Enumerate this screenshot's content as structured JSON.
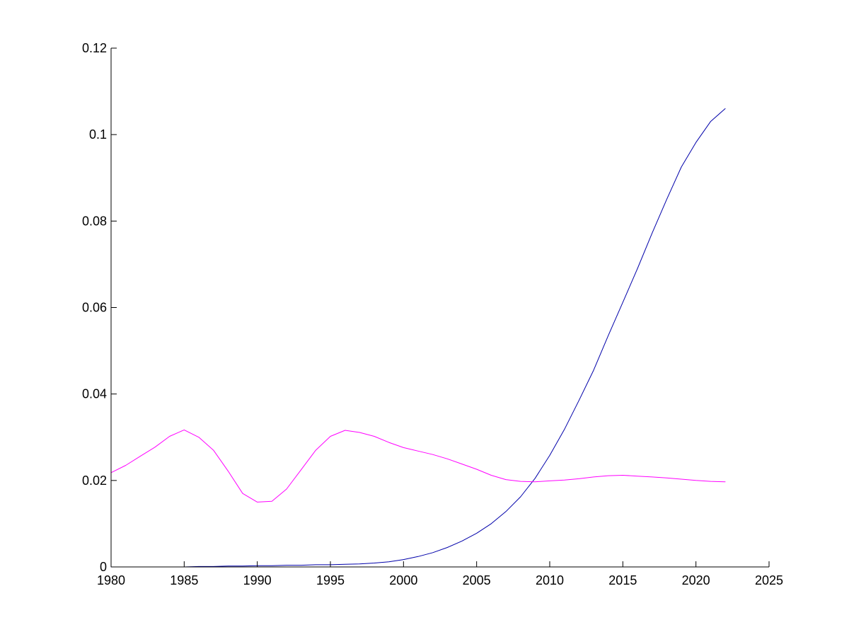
{
  "chart_data": {
    "type": "line",
    "title": "",
    "xlabel": "",
    "ylabel": "",
    "xlim": [
      1980,
      2025
    ],
    "ylim": [
      0,
      0.12
    ],
    "grid": false,
    "x_ticks": [
      1980,
      1985,
      1990,
      1995,
      2000,
      2005,
      2010,
      2015,
      2020,
      2025
    ],
    "x_tick_labels": [
      "1980",
      "1985",
      "1990",
      "1995",
      "2000",
      "2005",
      "2010",
      "2015",
      "2020",
      "2025"
    ],
    "y_ticks": [
      0,
      0.02,
      0.04,
      0.06,
      0.08,
      0.1,
      0.12
    ],
    "y_tick_labels": [
      "0",
      "0.02",
      "0.04",
      "0.06",
      "0.08",
      "0.1",
      "0.12"
    ],
    "x": [
      1980,
      1981,
      1982,
      1983,
      1984,
      1985,
      1986,
      1987,
      1988,
      1989,
      1990,
      1991,
      1992,
      1993,
      1994,
      1995,
      1996,
      1997,
      1998,
      1999,
      2000,
      2001,
      2002,
      2003,
      2004,
      2005,
      2006,
      2007,
      2008,
      2009,
      2010,
      2011,
      2012,
      2013,
      2014,
      2015,
      2016,
      2017,
      2018,
      2019,
      2020,
      2021,
      2022
    ],
    "series": [
      {
        "color": "#0000aa",
        "values": [
          0,
          0,
          0,
          0,
          0,
          0,
          0.0001,
          0.0001,
          0.0002,
          0.0002,
          0.0003,
          0.0003,
          0.0004,
          0.0004,
          0.0005,
          0.0005,
          0.0006,
          0.0007,
          0.0009,
          0.0012,
          0.0017,
          0.0024,
          0.0033,
          0.0045,
          0.006,
          0.0078,
          0.01,
          0.0128,
          0.0162,
          0.0205,
          0.0258,
          0.0318,
          0.0385,
          0.0455,
          0.0535,
          0.0612,
          0.069,
          0.0772,
          0.085,
          0.0925,
          0.0982,
          0.103,
          0.106
        ]
      },
      {
        "color": "#ff00ff",
        "values": [
          0.0218,
          0.0235,
          0.0256,
          0.0277,
          0.0302,
          0.0317,
          0.03,
          0.027,
          0.0222,
          0.017,
          0.015,
          0.0152,
          0.018,
          0.0225,
          0.027,
          0.0302,
          0.0316,
          0.0311,
          0.0302,
          0.0288,
          0.0276,
          0.0268,
          0.026,
          0.025,
          0.0238,
          0.0226,
          0.0212,
          0.0202,
          0.0198,
          0.0197,
          0.0199,
          0.0201,
          0.0204,
          0.0208,
          0.0211,
          0.0212,
          0.021,
          0.0208,
          0.0206,
          0.0203,
          0.02,
          0.0198,
          0.0197
        ]
      }
    ]
  }
}
